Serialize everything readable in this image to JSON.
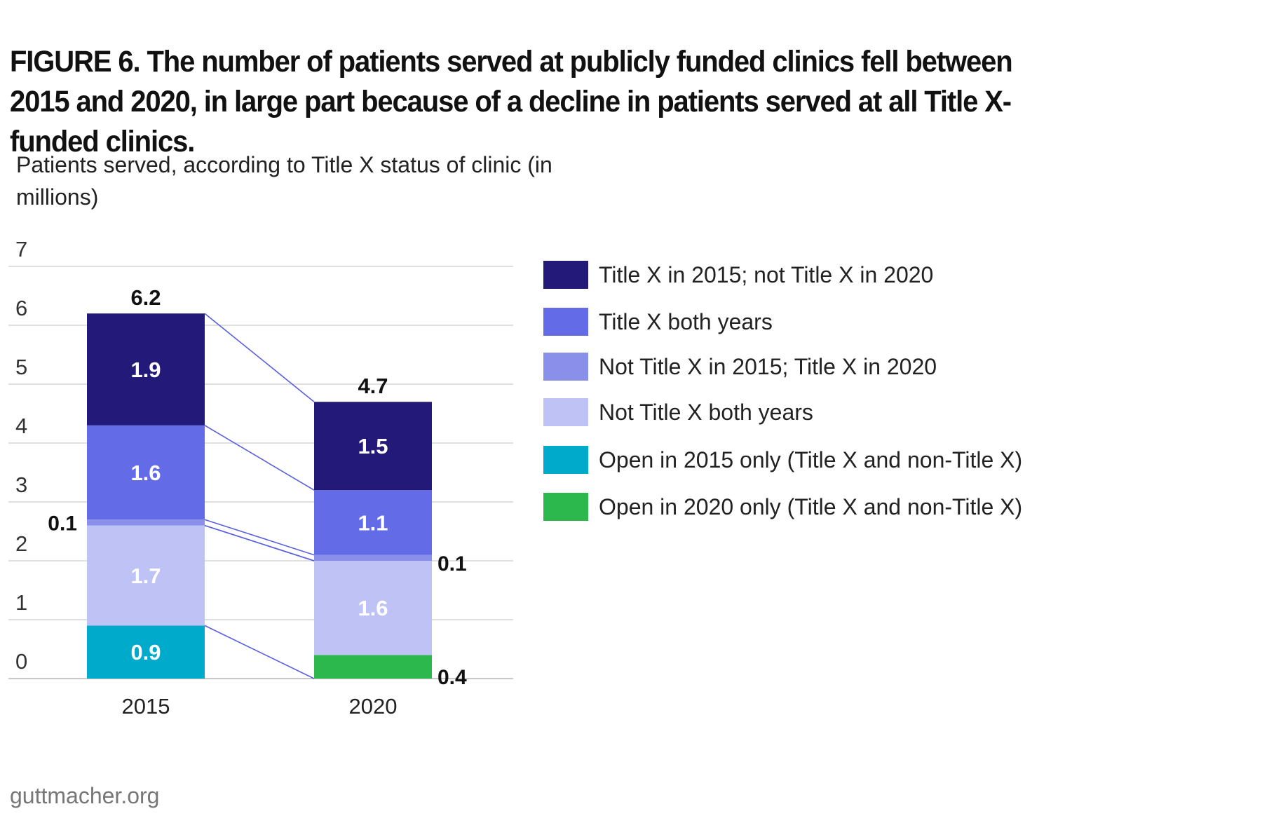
{
  "title": "FIGURE 6. The number of patients served at publicly funded clinics fell between 2015 and 2020, in large part because of a decline in patients served at all Title X-funded clinics.",
  "source": "guttmacher.org",
  "chart_data": {
    "type": "bar",
    "stacked": true,
    "title": "FIGURE 6. The number of patients served at publicly funded clinics fell between 2015 and 2020, in large part because of a decline in patients served at all Title X-funded clinics.",
    "subtitle": "Patients served, according to Title X status of clinic (in millions)",
    "categories": [
      "2015",
      "2020"
    ],
    "ylim": [
      0,
      7
    ],
    "yticks": [
      "0",
      "1",
      "2",
      "3",
      "4",
      "5",
      "6",
      "7"
    ],
    "grid": true,
    "legend_position": "right",
    "totals": [
      "6.2",
      "4.7"
    ],
    "series": [
      {
        "name": "Open in 2015 only (Title X and non-Title X)",
        "color": "#00AACB",
        "values": [
          0.9,
          0
        ],
        "labels": [
          "0.9",
          ""
        ]
      },
      {
        "name": "Open in 2020 only (Title X and non-Title X)",
        "color": "#2DB84D",
        "values": [
          0,
          0.4
        ],
        "labels": [
          "",
          "0.4"
        ]
      },
      {
        "name": "Not Title X both years",
        "color": "#BFC2F4",
        "values": [
          1.7,
          1.6
        ],
        "labels": [
          "1.7",
          "1.6"
        ]
      },
      {
        "name": "Not Title X in 2015; Title X in 2020",
        "color": "#8A90EA",
        "values": [
          0.1,
          0.1
        ],
        "labels": [
          "0.1",
          "0.1"
        ]
      },
      {
        "name": "Title X both years",
        "color": "#646BE6",
        "values": [
          1.6,
          1.1
        ],
        "labels": [
          "1.6",
          "1.1"
        ]
      },
      {
        "name": "Title X in 2015; not Title X in 2020",
        "color": "#221978",
        "values": [
          1.9,
          1.5
        ],
        "labels": [
          "1.9",
          "1.5"
        ]
      }
    ],
    "legend_order": [
      "Title X in 2015; not Title X in 2020",
      "Title X both years",
      "Not Title X in 2015; Title X in 2020",
      "Not Title X both years",
      "Open in 2015 only (Title X and non-Title X)",
      "Open in 2020 only (Title X and non-Title X)"
    ]
  }
}
